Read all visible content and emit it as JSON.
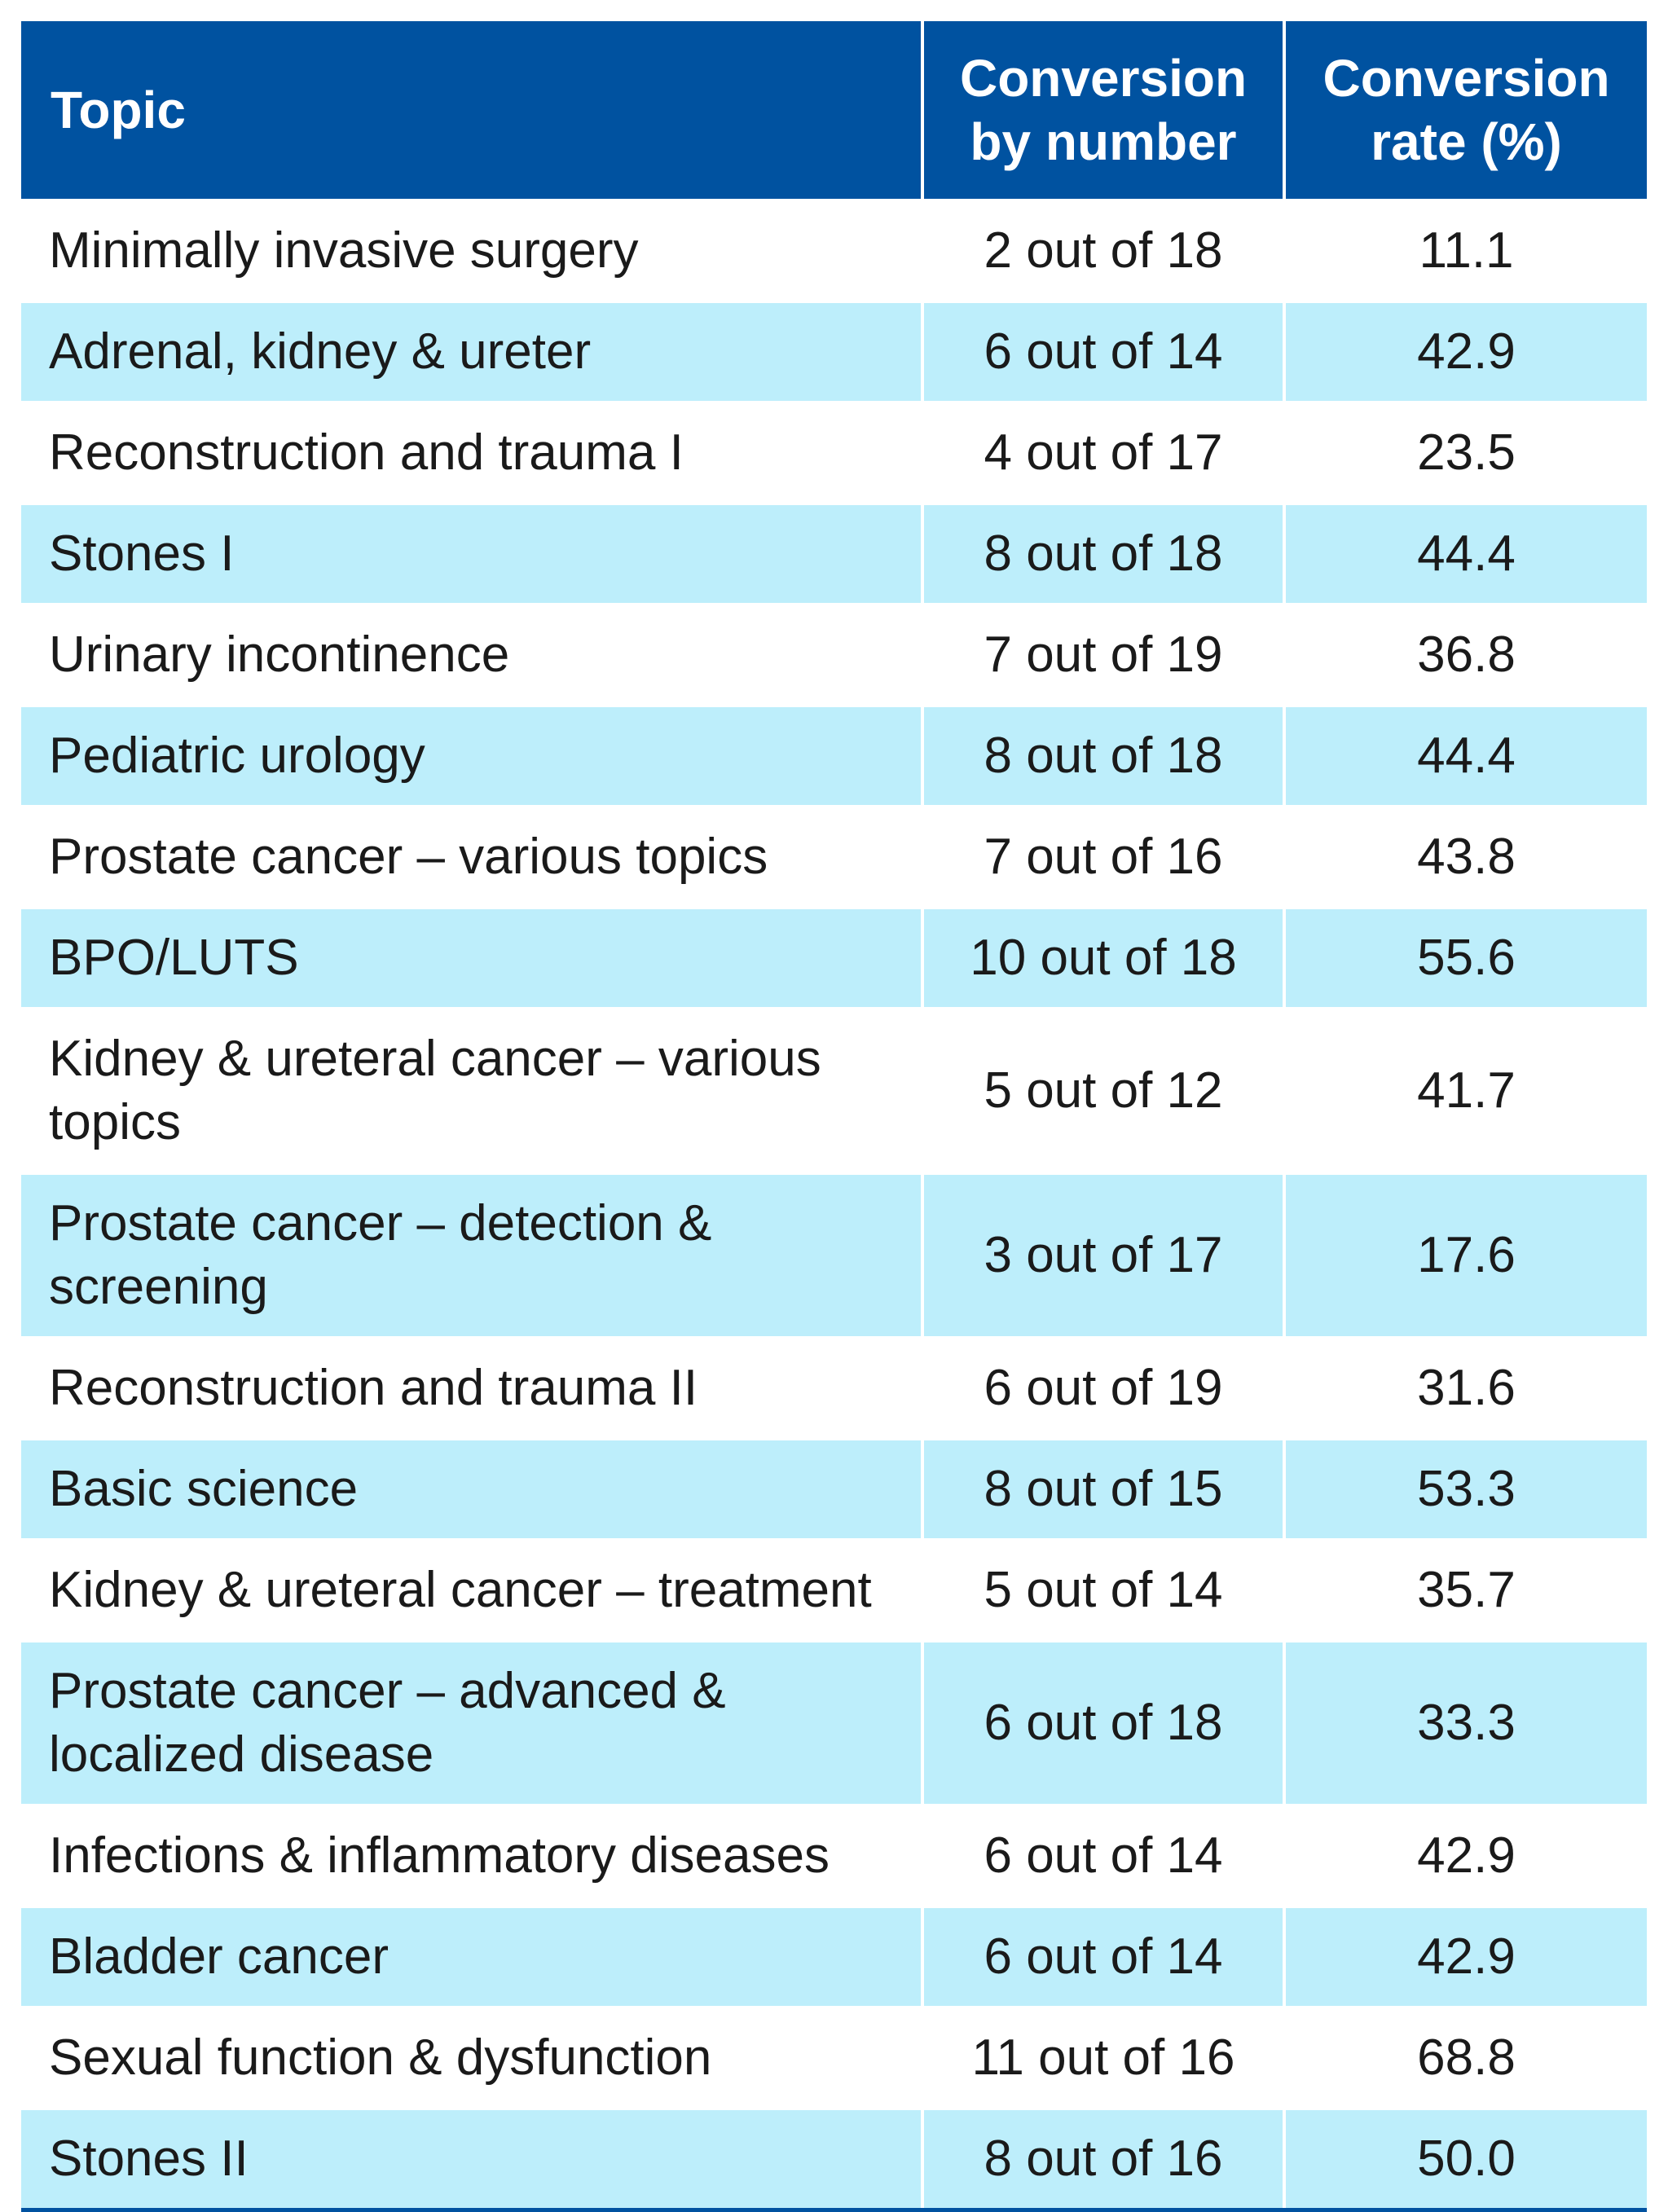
{
  "header": {
    "topic": "Topic",
    "conversion_by_number_line1": "Conversion",
    "conversion_by_number_line2": "by number",
    "conversion_rate_line1": "Conversion",
    "conversion_rate_line2": "rate (%)"
  },
  "rows": [
    {
      "topic": "Minimally invasive surgery",
      "by_number": "2 out of 18",
      "rate": "11.1"
    },
    {
      "topic": "Adrenal, kidney & ureter",
      "by_number": "6 out of 14",
      "rate": "42.9"
    },
    {
      "topic": "Reconstruction and trauma I",
      "by_number": "4 out of 17",
      "rate": "23.5"
    },
    {
      "topic": "Stones I",
      "by_number": "8 out of 18",
      "rate": "44.4"
    },
    {
      "topic": "Urinary incontinence",
      "by_number": "7 out of 19",
      "rate": "36.8"
    },
    {
      "topic": "Pediatric urology",
      "by_number": "8 out of 18",
      "rate": "44.4"
    },
    {
      "topic": "Prostate cancer – various topics",
      "by_number": "7 out of 16",
      "rate": "43.8"
    },
    {
      "topic": "BPO/LUTS",
      "by_number": "10 out of 18",
      "rate": "55.6"
    },
    {
      "topic": "Kidney & ureteral cancer – various topics",
      "by_number": "5 out of 12",
      "rate": "41.7"
    },
    {
      "topic": "Prostate cancer – detection & screening",
      "by_number": "3 out of 17",
      "rate": "17.6"
    },
    {
      "topic": "Reconstruction and trauma II",
      "by_number": "6 out of 19",
      "rate": "31.6"
    },
    {
      "topic": "Basic science",
      "by_number": "8 out of 15",
      "rate": "53.3"
    },
    {
      "topic": "Kidney & ureteral cancer – treatment",
      "by_number": "5 out of 14",
      "rate": "35.7"
    },
    {
      "topic": "Prostate cancer – advanced & localized disease",
      "by_number": "6 out of 18",
      "rate": "33.3"
    },
    {
      "topic": "Infections & inflammatory diseases",
      "by_number": "6 out of 14",
      "rate": "42.9"
    },
    {
      "topic": "Bladder cancer",
      "by_number": "6 out of 14",
      "rate": "42.9"
    },
    {
      "topic": "Sexual function & dysfunction",
      "by_number": "11 out of 16",
      "rate": "68.8"
    },
    {
      "topic": "Stones II",
      "by_number": "8 out of 16",
      "rate": "50.0"
    }
  ]
}
